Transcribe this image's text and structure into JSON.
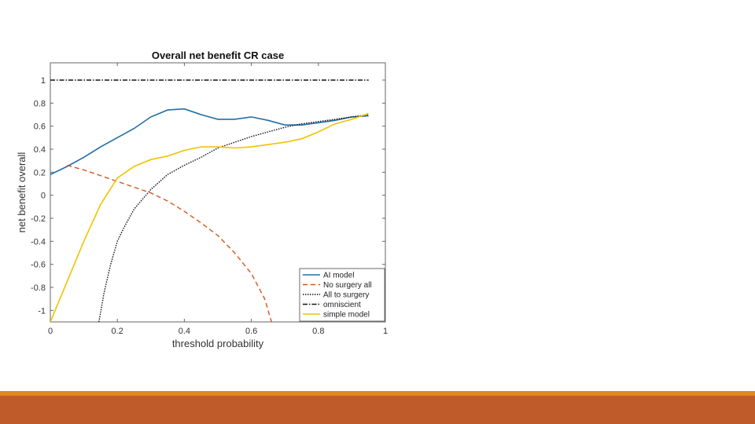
{
  "theme": {
    "bar_top": "#e08a1e",
    "bar_bottom": "#bf5a2b"
  },
  "chart_data": {
    "type": "line",
    "title": "Overall net benefit CR case",
    "xlabel": "threshold probability",
    "ylabel": "net benefit overall",
    "xlim": [
      0,
      1
    ],
    "ylim": [
      -1.1,
      1.15
    ],
    "xticks": [
      "0",
      "0.2",
      "0.4",
      "0.6",
      "0.8",
      "1"
    ],
    "yticks": [
      "-1",
      "-0.8",
      "-0.6",
      "-0.4",
      "-0.2",
      "0",
      "0.2",
      "0.4",
      "0.6",
      "0.8",
      "1"
    ],
    "legend_position": "bottom-right",
    "grid": false,
    "series": [
      {
        "name": "AI model",
        "color": "#1f6fa8",
        "dash": "solid",
        "points": [
          [
            0,
            0.18
          ],
          [
            0.05,
            0.25
          ],
          [
            0.1,
            0.33
          ],
          [
            0.15,
            0.42
          ],
          [
            0.2,
            0.5
          ],
          [
            0.25,
            0.58
          ],
          [
            0.3,
            0.68
          ],
          [
            0.35,
            0.74
          ],
          [
            0.4,
            0.75
          ],
          [
            0.45,
            0.7
          ],
          [
            0.5,
            0.66
          ],
          [
            0.55,
            0.66
          ],
          [
            0.6,
            0.68
          ],
          [
            0.65,
            0.65
          ],
          [
            0.7,
            0.61
          ],
          [
            0.75,
            0.61
          ],
          [
            0.8,
            0.63
          ],
          [
            0.85,
            0.65
          ],
          [
            0.9,
            0.68
          ],
          [
            0.95,
            0.69
          ]
        ]
      },
      {
        "name": "No surgery all",
        "color": "#d4561e",
        "dash": "dashed",
        "points": [
          [
            0.05,
            0.26
          ],
          [
            0.1,
            0.22
          ],
          [
            0.15,
            0.17
          ],
          [
            0.2,
            0.12
          ],
          [
            0.25,
            0.07
          ],
          [
            0.3,
            0.02
          ],
          [
            0.35,
            -0.05
          ],
          [
            0.4,
            -0.14
          ],
          [
            0.45,
            -0.24
          ],
          [
            0.5,
            -0.35
          ],
          [
            0.55,
            -0.5
          ],
          [
            0.6,
            -0.68
          ],
          [
            0.64,
            -0.9
          ],
          [
            0.66,
            -1.1
          ]
        ]
      },
      {
        "name": "All to surgery",
        "color": "#111111",
        "dash": "dotted",
        "points": [
          [
            0.145,
            -1.1
          ],
          [
            0.16,
            -0.85
          ],
          [
            0.18,
            -0.6
          ],
          [
            0.2,
            -0.4
          ],
          [
            0.22,
            -0.28
          ],
          [
            0.25,
            -0.12
          ],
          [
            0.3,
            0.05
          ],
          [
            0.35,
            0.18
          ],
          [
            0.4,
            0.26
          ],
          [
            0.45,
            0.33
          ],
          [
            0.5,
            0.41
          ],
          [
            0.55,
            0.46
          ],
          [
            0.6,
            0.51
          ],
          [
            0.65,
            0.55
          ],
          [
            0.7,
            0.59
          ],
          [
            0.75,
            0.62
          ],
          [
            0.8,
            0.64
          ],
          [
            0.85,
            0.66
          ],
          [
            0.9,
            0.68
          ],
          [
            0.95,
            0.7
          ]
        ]
      },
      {
        "name": "omniscient",
        "color": "#111111",
        "dash": "dashdot",
        "points": [
          [
            0,
            1
          ],
          [
            0.95,
            1
          ]
        ]
      },
      {
        "name": "simple model",
        "color": "#f2c200",
        "dash": "solid",
        "points": [
          [
            0,
            -1.1
          ],
          [
            0.05,
            -0.75
          ],
          [
            0.1,
            -0.4
          ],
          [
            0.15,
            -0.08
          ],
          [
            0.2,
            0.15
          ],
          [
            0.25,
            0.25
          ],
          [
            0.3,
            0.31
          ],
          [
            0.35,
            0.34
          ],
          [
            0.4,
            0.39
          ],
          [
            0.45,
            0.42
          ],
          [
            0.5,
            0.42
          ],
          [
            0.55,
            0.41
          ],
          [
            0.6,
            0.42
          ],
          [
            0.65,
            0.44
          ],
          [
            0.7,
            0.46
          ],
          [
            0.75,
            0.49
          ],
          [
            0.8,
            0.55
          ],
          [
            0.85,
            0.62
          ],
          [
            0.9,
            0.66
          ],
          [
            0.95,
            0.71
          ]
        ]
      }
    ]
  }
}
